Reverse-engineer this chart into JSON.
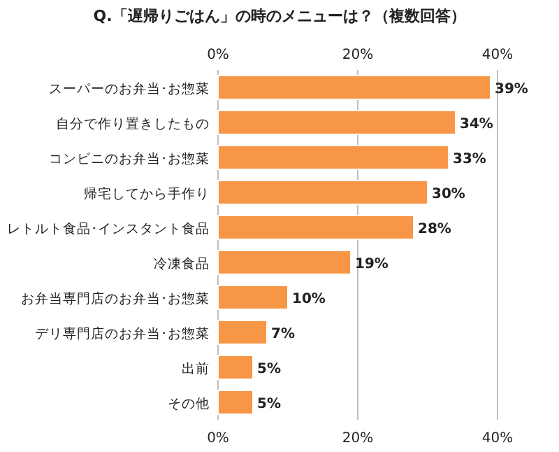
{
  "chart_data": {
    "type": "bar",
    "orientation": "horizontal",
    "title": "Q.「遅帰りごはん」の時のメニューは？（複数回答）",
    "categories": [
      "スーパーのお弁当･お惣菜",
      "自分で作り置きしたもの",
      "コンビニのお弁当･お惣菜",
      "帰宅してから手作り",
      "レトルト食品･インスタント食品",
      "冷凍食品",
      "お弁当専門店のお弁当･お惣菜",
      "デリ専門店のお弁当･お惣菜",
      "出前",
      "その他"
    ],
    "values": [
      39,
      34,
      33,
      30,
      28,
      19,
      10,
      7,
      5,
      5
    ],
    "value_labels": [
      "39%",
      "34%",
      "33%",
      "30%",
      "28%",
      "19%",
      "10%",
      "7%",
      "5%",
      "5%"
    ],
    "color": "#f79646",
    "xlim": [
      0,
      40
    ],
    "xticks": [
      {
        "value": 0,
        "label": "0%"
      },
      {
        "value": 20,
        "label": "20%"
      },
      {
        "value": 40,
        "label": "40%"
      }
    ],
    "x2lim": [
      0,
      40
    ],
    "x2ticks": [
      {
        "value": 0,
        "label": "0%"
      },
      {
        "value": 20,
        "label": "20%"
      },
      {
        "value": 40,
        "label": "40%"
      }
    ],
    "grid": "x"
  }
}
